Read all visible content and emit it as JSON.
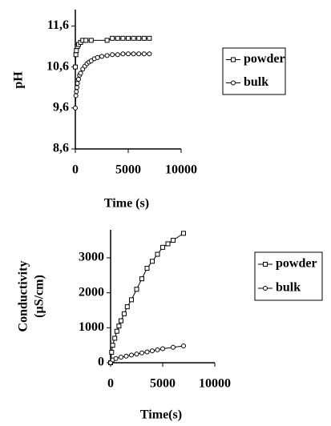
{
  "chart_data": [
    {
      "type": "line",
      "ylabel": [
        "pH"
      ],
      "xlabel": "Time (s)",
      "xlim": [
        0,
        10000
      ],
      "xticks": [
        0,
        5000,
        10000
      ],
      "ylim": [
        8.6,
        12.0
      ],
      "yticks": [
        {
          "value": 8.6,
          "label": "8,6"
        },
        {
          "value": 9.6,
          "label": "9,6"
        },
        {
          "value": 10.6,
          "label": "10,6"
        },
        {
          "value": 11.6,
          "label": "11,6"
        }
      ],
      "series": [
        {
          "name": "powder",
          "color": "#000000",
          "marker": "square",
          "x": [
            0,
            50,
            100,
            200,
            300,
            500,
            700,
            1000,
            1500,
            3000,
            3500,
            4000,
            4500,
            5000,
            5500,
            6000,
            6500,
            7000
          ],
          "values": [
            10.6,
            10.9,
            11.0,
            11.1,
            11.15,
            11.2,
            11.25,
            11.25,
            11.25,
            11.25,
            11.3,
            11.3,
            11.3,
            11.3,
            11.3,
            11.3,
            11.3,
            11.3
          ]
        },
        {
          "name": "bulk",
          "color": "#000000",
          "marker": "circle",
          "x": [
            0,
            50,
            100,
            150,
            200,
            300,
            400,
            500,
            700,
            900,
            1100,
            1300,
            1500,
            1800,
            2100,
            2500,
            3000,
            3500,
            4000,
            4500,
            5000,
            5500,
            6000,
            6500,
            7000
          ],
          "values": [
            9.6,
            9.9,
            10.0,
            10.1,
            10.2,
            10.3,
            10.4,
            10.45,
            10.55,
            10.62,
            10.68,
            10.72,
            10.75,
            10.8,
            10.83,
            10.86,
            10.88,
            10.9,
            10.9,
            10.92,
            10.92,
            10.92,
            10.92,
            10.92,
            10.92
          ]
        }
      ]
    },
    {
      "type": "line",
      "ylabel": [
        "Conductivity",
        "(µS/cm)"
      ],
      "xlabel": "Time(s)",
      "xlim": [
        0,
        10000
      ],
      "xticks": [
        0,
        5000,
        10000
      ],
      "ylim": [
        0,
        3800
      ],
      "yticks": [
        0,
        1000,
        2000,
        3000
      ],
      "series": [
        {
          "name": "powder",
          "color": "#000000",
          "marker": "square",
          "x": [
            0,
            100,
            200,
            400,
            600,
            800,
            1000,
            1300,
            1600,
            2000,
            2500,
            3000,
            3500,
            4000,
            4500,
            5000,
            5500,
            6000,
            7000
          ],
          "values": [
            0,
            300,
            500,
            700,
            900,
            1050,
            1200,
            1400,
            1600,
            1800,
            2100,
            2400,
            2700,
            2900,
            3100,
            3300,
            3400,
            3500,
            3700
          ]
        },
        {
          "name": "bulk",
          "color": "#000000",
          "marker": "circle",
          "x": [
            0,
            200,
            500,
            1000,
            1500,
            2000,
            2500,
            3000,
            3500,
            4000,
            4500,
            5000,
            6000,
            7000
          ],
          "values": [
            0,
            80,
            120,
            160,
            190,
            220,
            250,
            280,
            310,
            340,
            370,
            400,
            440,
            480
          ]
        }
      ]
    }
  ]
}
